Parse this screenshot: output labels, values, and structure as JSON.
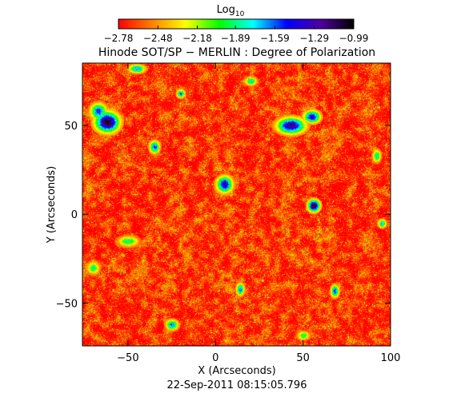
{
  "colorbar": {
    "label_main": "Log",
    "label_sub": "10",
    "colors": [
      "#ff0000",
      "#ff8000",
      "#ffff00",
      "#00ff00",
      "#00ffff",
      "#0000ff",
      "#5000a0",
      "#000000"
    ],
    "tick_labels": [
      "−2.78",
      "−2.48",
      "−2.18",
      "−1.89",
      "−1.59",
      "−1.29",
      "−0.99"
    ]
  },
  "footer": {
    "timestamp": "22-Sep-2011 08:15:05.796"
  },
  "chart_data": {
    "type": "heatmap",
    "title": "Hinode SOT/SP − MERLIN : Degree of Polarization",
    "xlabel": "X (Arcseconds)",
    "ylabel": "Y (Arcseconds)",
    "xlim": [
      -76,
      100
    ],
    "ylim": [
      -74,
      85
    ],
    "xticks": [
      -50,
      0,
      50,
      100
    ],
    "xtick_labels": [
      "−50",
      "0",
      "50",
      "100"
    ],
    "yticks": [
      -50,
      0,
      50
    ],
    "ytick_labels": [
      "−50",
      "0",
      "50"
    ],
    "colorscale": "log10",
    "value_range": [
      -2.78,
      -0.99
    ],
    "colorbar_ticks": [
      -2.78,
      -2.48,
      -2.18,
      -1.89,
      -1.59,
      -1.29,
      -0.99
    ],
    "background_level": -2.7,
    "features": [
      {
        "x": -62,
        "y": 52,
        "rx": 6,
        "ry": 5,
        "level": -1.0
      },
      {
        "x": -67,
        "y": 58,
        "rx": 4,
        "ry": 4,
        "level": -1.5
      },
      {
        "x": -35,
        "y": 38,
        "rx": 2.5,
        "ry": 3,
        "level": -1.5
      },
      {
        "x": 5,
        "y": 17,
        "rx": 4,
        "ry": 4,
        "level": -1.3
      },
      {
        "x": 43,
        "y": 50,
        "rx": 7,
        "ry": 4,
        "level": -1.2
      },
      {
        "x": 55,
        "y": 55,
        "rx": 4,
        "ry": 3,
        "level": -1.3
      },
      {
        "x": 56,
        "y": 5,
        "rx": 3,
        "ry": 3,
        "level": -1.0
      },
      {
        "x": -20,
        "y": 68,
        "rx": 2,
        "ry": 2,
        "level": -1.6
      },
      {
        "x": -50,
        "y": -15,
        "rx": 5,
        "ry": 2.5,
        "level": -1.9
      },
      {
        "x": 14,
        "y": -42,
        "rx": 2,
        "ry": 3,
        "level": -1.6
      },
      {
        "x": 68,
        "y": -43,
        "rx": 2,
        "ry": 3,
        "level": -1.5
      },
      {
        "x": -25,
        "y": -62,
        "rx": 3,
        "ry": 2.5,
        "level": -1.6
      },
      {
        "x": 92,
        "y": 33,
        "rx": 2,
        "ry": 3,
        "level": -1.8
      },
      {
        "x": 95,
        "y": -5,
        "rx": 2,
        "ry": 2,
        "level": -1.7
      },
      {
        "x": 20,
        "y": 75,
        "rx": 3,
        "ry": 2,
        "level": -1.8
      },
      {
        "x": -45,
        "y": 82,
        "rx": 4,
        "ry": 2,
        "level": -1.6
      },
      {
        "x": 50,
        "y": -68,
        "rx": 3,
        "ry": 2,
        "level": -1.9
      },
      {
        "x": -70,
        "y": -30,
        "rx": 3,
        "ry": 3,
        "level": -1.9
      }
    ]
  }
}
